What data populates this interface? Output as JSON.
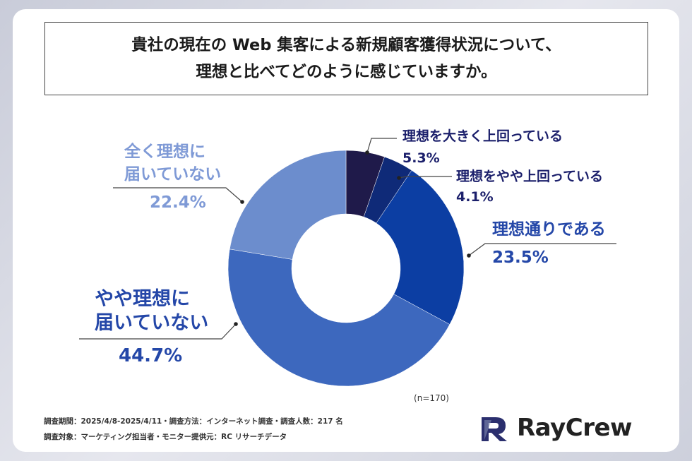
{
  "title": {
    "line1": "貴社の現在の Web 集客による新規顧客獲得状況について、",
    "line2": "理想と比べてどのように感じていますか。"
  },
  "chart_data": {
    "type": "pie",
    "donut": true,
    "sample_size": "(n=170)",
    "slices": [
      {
        "label": "理想を大きく上回っている",
        "value": 5.3,
        "value_label": "5.3%",
        "color": "#1f1a4a"
      },
      {
        "label": "理想をやや上回っている",
        "value": 4.1,
        "value_label": "4.1%",
        "color": "#0f2a78"
      },
      {
        "label": "理想通りである",
        "value": 23.5,
        "value_label": "23.5%",
        "color": "#0c3ea3"
      },
      {
        "label": "やや理想に届いていない",
        "value": 44.7,
        "value_label": "44.7%",
        "color": "#3d68be"
      },
      {
        "label": "全く理想に届いていない",
        "value": 22.4,
        "value_label": "22.4%",
        "color": "#6c8dcd"
      }
    ],
    "label_lines": [
      [
        "理想を大きく上回っている"
      ],
      [
        "理想をやや上回っている"
      ],
      [
        "理想通りである"
      ],
      [
        "やや理想に",
        "届いていない"
      ],
      [
        "全く理想に",
        "届いていない"
      ]
    ],
    "label_colors": {
      "dark": "#1b1f6b",
      "mid": "#2447a8",
      "light": "#7f9ad6"
    }
  },
  "footer": {
    "line1": "調査期間：2025/4/8-2025/4/11・調査方法：インターネット調査・調査人数：217 名",
    "line2": "調査対象：マーケティング担当者・モニター提供元：RC リサーチデータ"
  },
  "logo": {
    "text": "RayCrew",
    "icon": "raycrew-logo-icon"
  }
}
